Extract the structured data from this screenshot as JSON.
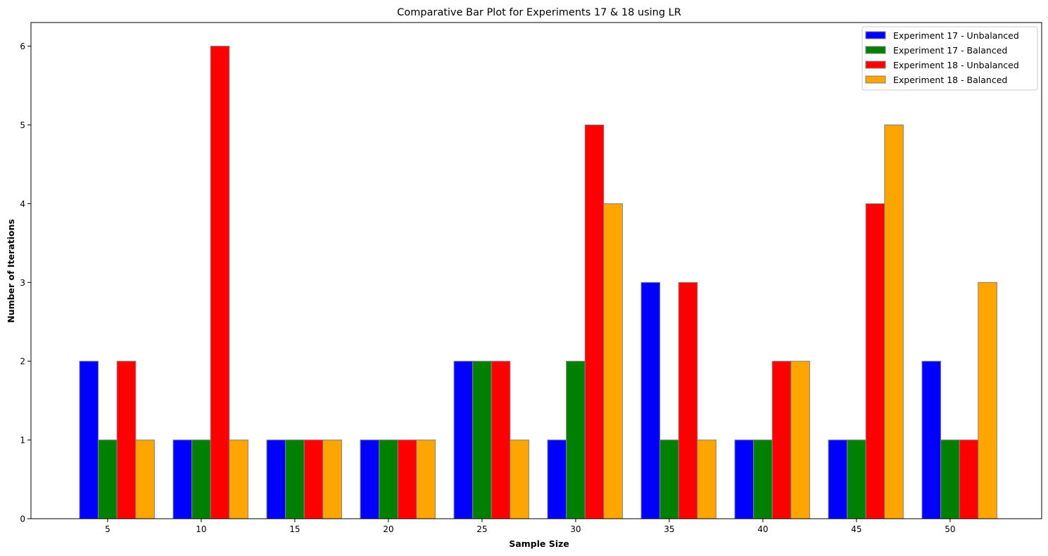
{
  "chart_data": {
    "type": "bar",
    "title": "Comparative Bar Plot for Experiments 17 & 18 using LR",
    "xlabel": "Sample Size",
    "ylabel": "Number of Iterations",
    "categories": [
      "5",
      "10",
      "15",
      "20",
      "25",
      "30",
      "35",
      "40",
      "45",
      "50"
    ],
    "series": [
      {
        "name": "Experiment 17 - Unbalanced",
        "color": "#0000ff",
        "values": [
          2,
          1,
          1,
          1,
          2,
          1,
          3,
          1,
          1,
          2
        ]
      },
      {
        "name": "Experiment 17 - Balanced",
        "color": "#008000",
        "values": [
          1,
          1,
          1,
          1,
          2,
          2,
          1,
          1,
          1,
          1
        ]
      },
      {
        "name": "Experiment 18 - Unbalanced",
        "color": "#ff0000",
        "values": [
          2,
          6,
          1,
          1,
          2,
          5,
          3,
          2,
          4,
          1
        ]
      },
      {
        "name": "Experiment 18 - Balanced",
        "color": "#ffa500",
        "values": [
          1,
          1,
          1,
          1,
          1,
          4,
          1,
          2,
          5,
          3
        ]
      }
    ],
    "ylim": [
      0,
      6.3
    ],
    "yticks": [
      0,
      1,
      2,
      3,
      4,
      5,
      6
    ],
    "grid": false,
    "legend_position": "upper right",
    "bar_edge_color": "#808080"
  }
}
